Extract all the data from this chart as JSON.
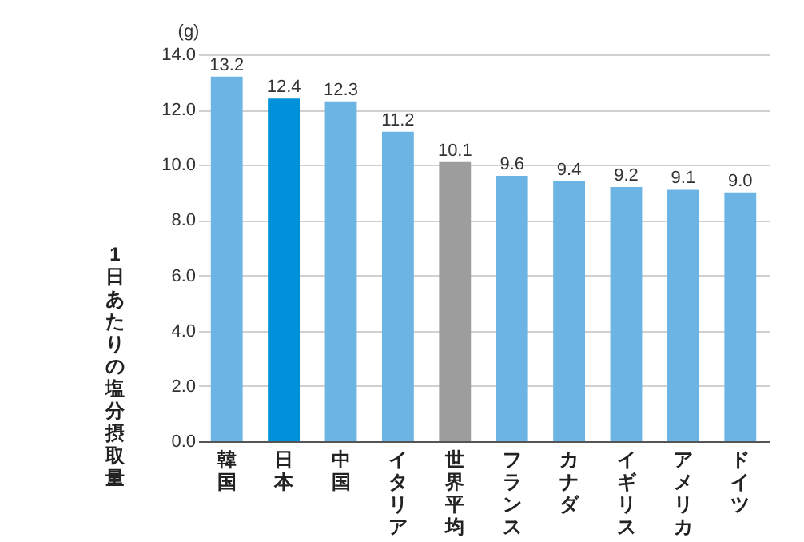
{
  "chart_data": {
    "type": "bar",
    "ylabel": "1日あたりの塩分摂取量",
    "annotations": [
      "(g)"
    ],
    "categories": [
      "韓国",
      "日本",
      "中国",
      "イタリア",
      "世界平均",
      "フランス",
      "カナダ",
      "イギリス",
      "アメリカ",
      "ドイツ"
    ],
    "values": [
      13.2,
      12.4,
      12.3,
      11.2,
      10.1,
      9.6,
      9.4,
      9.2,
      9.1,
      9.0
    ],
    "colors": [
      "#6cb4e4",
      "#0091da",
      "#6cb4e4",
      "#6cb4e4",
      "#9d9d9d",
      "#6cb4e4",
      "#6cb4e4",
      "#6cb4e4",
      "#6cb4e4",
      "#6cb4e4"
    ],
    "ylim": [
      0,
      14
    ],
    "yticks": [
      {
        "value": 0,
        "label": "0.0"
      },
      {
        "value": 2,
        "label": "2.0"
      },
      {
        "value": 4,
        "label": "4.0"
      },
      {
        "value": 6,
        "label": "6.0"
      },
      {
        "value": 8,
        "label": "8.0"
      },
      {
        "value": 10,
        "label": "10.0"
      },
      {
        "value": 12,
        "label": "12.0"
      },
      {
        "value": 14,
        "label": "14.0"
      }
    ],
    "value_labels": [
      "13.2",
      "12.4",
      "12.3",
      "11.2",
      "10.1",
      "9.6",
      "9.4",
      "9.2",
      "9.1",
      "9.0"
    ],
    "grid": "y"
  }
}
